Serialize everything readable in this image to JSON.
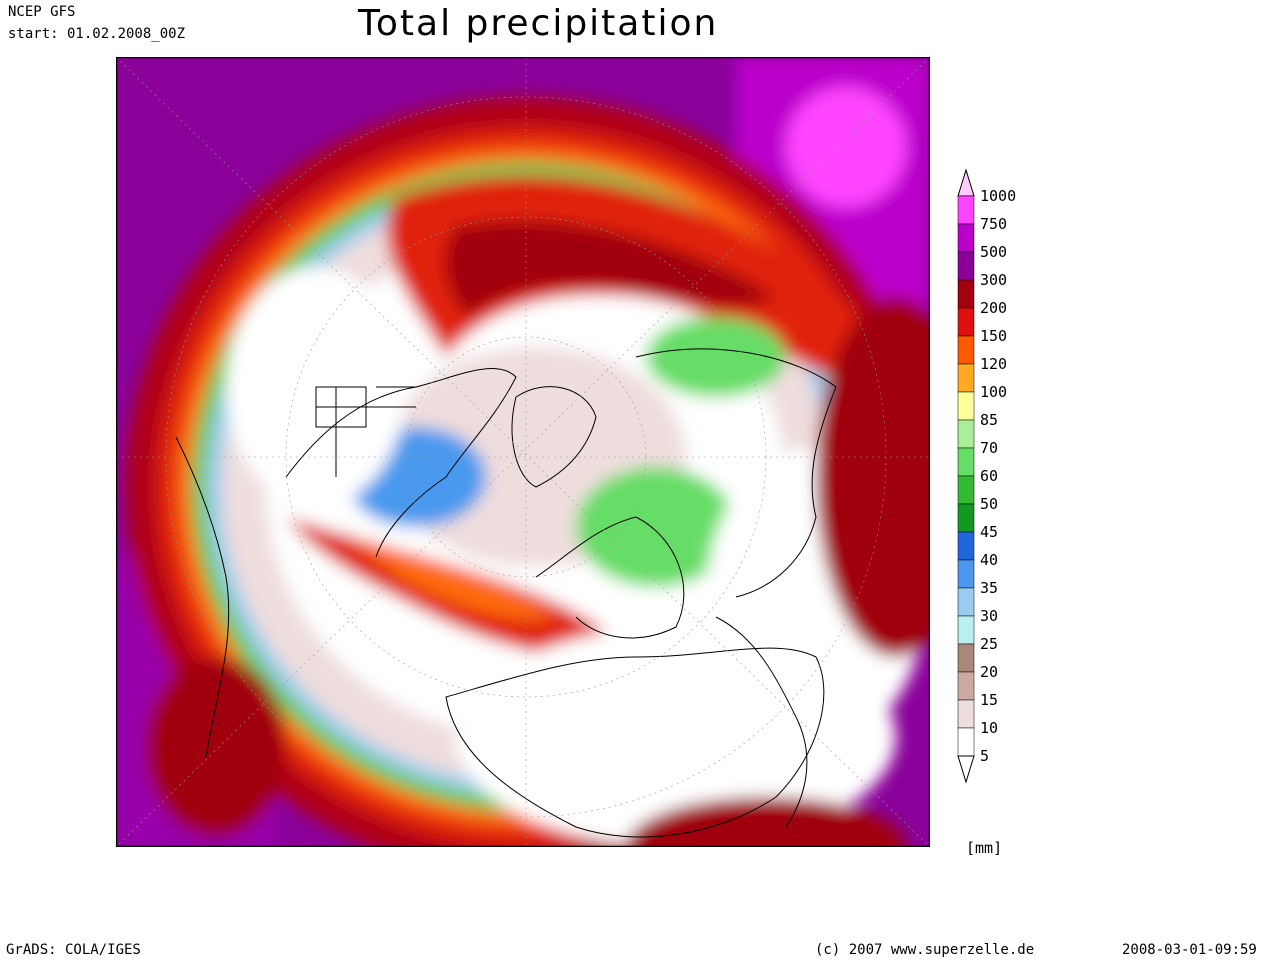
{
  "header": {
    "model": "NCEP GFS",
    "start": "start: 01.02.2008_00Z",
    "title": "Total precipitation"
  },
  "legend": {
    "unit": "[mm]",
    "levels": [
      {
        "label": "1000",
        "color": "#ffccff"
      },
      {
        "label": "750",
        "color": "#ff44ff"
      },
      {
        "label": "500",
        "color": "#bb00cc"
      },
      {
        "label": "300",
        "color": "#8a0099"
      },
      {
        "label": "200",
        "color": "#a00010"
      },
      {
        "label": "150",
        "color": "#e01010"
      },
      {
        "label": "120",
        "color": "#ff5a00"
      },
      {
        "label": "100",
        "color": "#ffaa22"
      },
      {
        "label": "85",
        "color": "#ffff99"
      },
      {
        "label": "70",
        "color": "#aaee99"
      },
      {
        "label": "60",
        "color": "#66dd66"
      },
      {
        "label": "50",
        "color": "#33bb33"
      },
      {
        "label": "45",
        "color": "#119922"
      },
      {
        "label": "40",
        "color": "#2266dd"
      },
      {
        "label": "35",
        "color": "#4a99ee"
      },
      {
        "label": "30",
        "color": "#99ccee"
      },
      {
        "label": "25",
        "color": "#bbeeee"
      },
      {
        "label": "20",
        "color": "#aa8877"
      },
      {
        "label": "15",
        "color": "#ccaaa0"
      },
      {
        "label": "10",
        "color": "#eedddd"
      },
      {
        "label": "5",
        "color": "#ffffff"
      }
    ]
  },
  "footer": {
    "left": "GrADS: COLA/IGES",
    "center": "(c) 2007 www.superzelle.de",
    "right": "2008-03-01-09:59"
  }
}
